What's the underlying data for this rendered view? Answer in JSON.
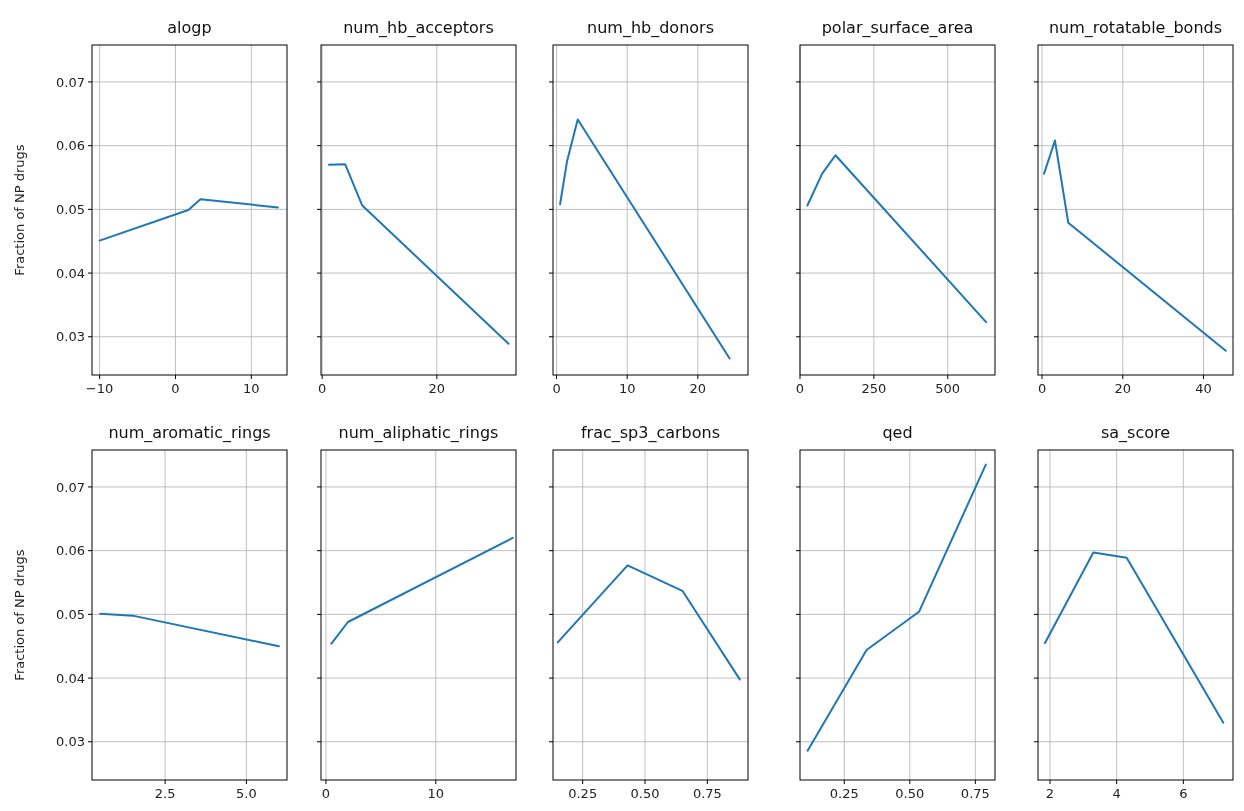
{
  "chart_data": [
    {
      "type": "line",
      "title": "alogp",
      "ylabel": "Fraction of NP drugs",
      "x": [
        -10,
        1.7,
        3.3,
        13.5
      ],
      "series": [
        {
          "color": "#1f77b4",
          "values": [
            0.0451,
            0.0499,
            0.0516,
            0.0503
          ]
        }
      ],
      "xlim": [
        -11,
        14.7
      ],
      "xticks": [
        {
          "value": -10,
          "label": "−10"
        },
        0,
        10
      ],
      "ylim": [
        0.024,
        0.0758
      ],
      "yticks": [
        0.03,
        0.04,
        0.05,
        0.06,
        0.07
      ],
      "grid": true
    },
    {
      "type": "line",
      "title": "num_hb_acceptors",
      "x": [
        1.2,
        4,
        7,
        32.5
      ],
      "series": [
        {
          "color": "#1f77b4",
          "values": [
            0.057,
            0.0571,
            0.0506,
            0.0289
          ]
        }
      ],
      "xlim": [
        -0.2,
        33.8
      ],
      "xticks": [
        0,
        20
      ],
      "ylim": [
        0.024,
        0.0758
      ],
      "yticks": [
        0.03,
        0.04,
        0.05,
        0.06,
        0.07
      ],
      "grid": true,
      "tick_labels": "x"
    },
    {
      "type": "line",
      "title": "num_hb_donors",
      "x": [
        0.5,
        1.5,
        3,
        24.5
      ],
      "series": [
        {
          "color": "#1f77b4",
          "values": [
            0.0508,
            0.0576,
            0.0641,
            0.0266
          ]
        }
      ],
      "xlim": [
        -0.5,
        27.1
      ],
      "xticks": [
        0,
        10,
        20
      ],
      "ylim": [
        0.024,
        0.0758
      ],
      "yticks": [
        0.03,
        0.04,
        0.05,
        0.06,
        0.07
      ],
      "grid": true,
      "tick_labels": "x"
    },
    {
      "type": "line",
      "title": "polar_surface_area",
      "x": [
        25,
        75,
        120,
        630
      ],
      "series": [
        {
          "color": "#1f77b4",
          "values": [
            0.0506,
            0.0556,
            0.0585,
            0.0323
          ]
        }
      ],
      "xlim": [
        0,
        660
      ],
      "xticks": [
        0,
        250,
        500
      ],
      "ylim": [
        0.024,
        0.0758
      ],
      "yticks": [
        0.03,
        0.04,
        0.05,
        0.06,
        0.07
      ],
      "grid": true,
      "tick_labels": "x"
    },
    {
      "type": "line",
      "title": "num_rotatable_bonds",
      "x": [
        0.5,
        3.2,
        6.5,
        45.5
      ],
      "series": [
        {
          "color": "#1f77b4",
          "values": [
            0.0556,
            0.0608,
            0.0479,
            0.0278
          ]
        }
      ],
      "xlim": [
        -1,
        47.3
      ],
      "xticks": [
        0,
        20,
        40
      ],
      "ylim": [
        0.024,
        0.0758
      ],
      "yticks": [
        0.03,
        0.04,
        0.05,
        0.06,
        0.07
      ],
      "grid": true,
      "tick_labels": "x"
    },
    {
      "type": "line",
      "title": "num_aromatic_rings",
      "ylabel": "Fraction of NP drugs",
      "x": [
        0.5,
        1.5,
        6
      ],
      "series": [
        {
          "color": "#1f77b4",
          "values": [
            0.0501,
            0.0498,
            0.045
          ]
        }
      ],
      "xlim": [
        0.25,
        6.25
      ],
      "xticks": [
        2.5,
        {
          "value": 5,
          "label": "5.0"
        }
      ],
      "ylim": [
        0.024,
        0.0758
      ],
      "yticks": [
        0.03,
        0.04,
        0.05,
        0.06,
        0.07
      ],
      "grid": true
    },
    {
      "type": "line",
      "title": "num_aliphatic_rings",
      "x": [
        0.5,
        2,
        17
      ],
      "series": [
        {
          "color": "#1f77b4",
          "values": [
            0.0454,
            0.0488,
            0.062
          ]
        }
      ],
      "xlim": [
        -0.45,
        17.3
      ],
      "xticks": [
        0,
        10
      ],
      "ylim": [
        0.024,
        0.0758
      ],
      "yticks": [
        0.03,
        0.04,
        0.05,
        0.06,
        0.07
      ],
      "grid": true,
      "tick_labels": "x"
    },
    {
      "type": "line",
      "title": "frac_sp3_carbons",
      "x": [
        0.15,
        0.43,
        0.65,
        0.88
      ],
      "series": [
        {
          "color": "#1f77b4",
          "values": [
            0.0456,
            0.0577,
            0.0537,
            0.0398
          ]
        }
      ],
      "xlim": [
        0.131,
        0.913
      ],
      "xticks": [
        0.25,
        {
          "value": 0.5,
          "label": "0.50"
        },
        0.75
      ],
      "ylim": [
        0.024,
        0.0758
      ],
      "yticks": [
        0.03,
        0.04,
        0.05,
        0.06,
        0.07
      ],
      "grid": true,
      "tick_labels": "x"
    },
    {
      "type": "line",
      "title": "qed",
      "x": [
        0.11,
        0.335,
        0.535,
        0.79
      ],
      "series": [
        {
          "color": "#1f77b4",
          "values": [
            0.0286,
            0.0444,
            0.0504,
            0.0735
          ]
        }
      ],
      "xlim": [
        0.081,
        0.825
      ],
      "xticks": [
        0.25,
        {
          "value": 0.5,
          "label": "0.50"
        },
        0.75
      ],
      "ylim": [
        0.024,
        0.0758
      ],
      "yticks": [
        0.03,
        0.04,
        0.05,
        0.06,
        0.07
      ],
      "grid": true,
      "tick_labels": "x"
    },
    {
      "type": "line",
      "title": "sa_score",
      "x": [
        1.85,
        3.3,
        4.3,
        7.2
      ],
      "series": [
        {
          "color": "#1f77b4",
          "values": [
            0.0455,
            0.0597,
            0.0589,
            0.033
          ]
        }
      ],
      "xlim": [
        1.64,
        7.49
      ],
      "xticks": [
        2,
        4,
        6
      ],
      "ylim": [
        0.024,
        0.0758
      ],
      "yticks": [
        0.03,
        0.04,
        0.05,
        0.06,
        0.07
      ],
      "grid": true,
      "tick_labels": "x"
    }
  ]
}
